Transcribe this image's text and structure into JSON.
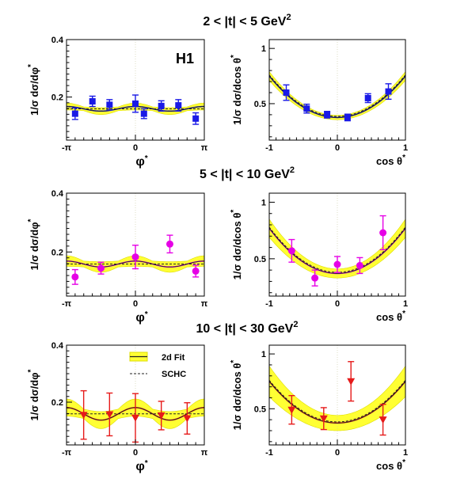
{
  "experiment_label": "H1",
  "legend": {
    "fit_label": "2d Fit",
    "schc_label": "SCHC"
  },
  "colors": {
    "band": "#ffff33",
    "band_edge": "#dddd00",
    "fit": "#222222",
    "schc": "#222222"
  },
  "chart_data": [
    {
      "type": "scatter",
      "row": 0,
      "variable": "phi",
      "row_title": {
        "prefix": "2 < |t| < 5 GeV",
        "sup": "2"
      },
      "ylabel": "1/σ dσ/dφ*",
      "xlabel": "φ*",
      "xlim": [
        -3.1416,
        3.1416
      ],
      "ylim": [
        0.05,
        0.4
      ],
      "xticks": [
        {
          "v": -3.1416,
          "label": "-π"
        },
        {
          "v": 0,
          "label": "0"
        },
        {
          "v": 3.1416,
          "label": "π"
        }
      ],
      "yticks": [
        {
          "v": 0.2,
          "label": "0.2"
        },
        {
          "v": 0.4,
          "label": "0.4"
        }
      ],
      "marker": "square",
      "marker_color": "#1a1ae6",
      "fit_color": "#1a1ae6",
      "fit": {
        "kind": "phi",
        "mean": 0.159,
        "amp": 0.008,
        "band": 0.012
      },
      "schc_level": 0.159,
      "points": [
        {
          "x": -2.75,
          "y": 0.142,
          "err": 0.02
        },
        {
          "x": -1.96,
          "y": 0.185,
          "err": 0.018
        },
        {
          "x": -1.18,
          "y": 0.173,
          "err": 0.018
        },
        {
          "x": 0.0,
          "y": 0.177,
          "err": 0.03
        },
        {
          "x": 0.39,
          "y": 0.142,
          "err": 0.017
        },
        {
          "x": 1.18,
          "y": 0.169,
          "err": 0.018
        },
        {
          "x": 1.96,
          "y": 0.171,
          "err": 0.02
        },
        {
          "x": 2.75,
          "y": 0.125,
          "err": 0.02
        }
      ]
    },
    {
      "type": "scatter",
      "row": 0,
      "variable": "cos",
      "ylabel": "1/σ dσ/dcos θ*",
      "xlabel": "cos θ*",
      "xlim": [
        -1,
        1
      ],
      "ylim": [
        0.17,
        1.08
      ],
      "xticks": [
        {
          "v": -1,
          "label": "-1"
        },
        {
          "v": 0,
          "label": "0"
        },
        {
          "v": 1,
          "label": "1"
        }
      ],
      "yticks": [
        {
          "v": 0.5,
          "label": "0.5"
        },
        {
          "v": 1,
          "label": "1"
        }
      ],
      "marker": "square",
      "marker_color": "#1a1ae6",
      "fit_color": "#1a1ae6",
      "fit": {
        "kind": "cos",
        "a": 0.375,
        "b": 0.375,
        "band": 0.04
      },
      "points": [
        {
          "x": -0.75,
          "y": 0.6,
          "err": 0.07
        },
        {
          "x": -0.45,
          "y": 0.455,
          "err": 0.04
        },
        {
          "x": -0.15,
          "y": 0.4,
          "err": 0.03
        },
        {
          "x": 0.15,
          "y": 0.375,
          "err": 0.03
        },
        {
          "x": 0.45,
          "y": 0.55,
          "err": 0.04
        },
        {
          "x": 0.75,
          "y": 0.61,
          "err": 0.07
        }
      ]
    },
    {
      "type": "scatter",
      "row": 1,
      "variable": "phi",
      "row_title": {
        "prefix": "5 < |t| < 10 GeV",
        "sup": "2"
      },
      "ylabel": "1/σ dσ/dφ*",
      "xlabel": "φ*",
      "xlim": [
        -3.1416,
        3.1416
      ],
      "ylim": [
        0.05,
        0.4
      ],
      "xticks": [
        {
          "v": -3.1416,
          "label": "-π"
        },
        {
          "v": 0,
          "label": "0"
        },
        {
          "v": 3.1416,
          "label": "π"
        }
      ],
      "yticks": [
        {
          "v": 0.2,
          "label": "0.2"
        },
        {
          "v": 0.4,
          "label": "0.4"
        }
      ],
      "marker": "circle",
      "marker_color": "#e600e6",
      "fit_color": "#e600e6",
      "fit": {
        "kind": "phi",
        "mean": 0.159,
        "amp": 0.01,
        "band": 0.018
      },
      "schc_level": 0.159,
      "points": [
        {
          "x": -2.75,
          "y": 0.115,
          "err": 0.025
        },
        {
          "x": -1.57,
          "y": 0.145,
          "err": 0.02
        },
        {
          "x": 0.0,
          "y": 0.183,
          "err": 0.04
        },
        {
          "x": 1.57,
          "y": 0.227,
          "err": 0.03
        },
        {
          "x": 2.75,
          "y": 0.135,
          "err": 0.02
        }
      ]
    },
    {
      "type": "scatter",
      "row": 1,
      "variable": "cos",
      "ylabel": "1/σ dσ/dcos θ*",
      "xlabel": "cos θ*",
      "xlim": [
        -1,
        1
      ],
      "ylim": [
        0.17,
        1.08
      ],
      "xticks": [
        {
          "v": -1,
          "label": "-1"
        },
        {
          "v": 0,
          "label": "0"
        },
        {
          "v": 1,
          "label": "1"
        }
      ],
      "yticks": [
        {
          "v": 0.5,
          "label": "0.5"
        },
        {
          "v": 1,
          "label": "1"
        }
      ],
      "marker": "circle",
      "marker_color": "#e600e6",
      "fit_color": "#e600e6",
      "fit": {
        "kind": "cos",
        "a": 0.37,
        "b": 0.4,
        "band": 0.08
      },
      "points": [
        {
          "x": -0.67,
          "y": 0.57,
          "err": 0.1
        },
        {
          "x": -0.33,
          "y": 0.33,
          "err": 0.07
        },
        {
          "x": 0.0,
          "y": 0.45,
          "err": 0.07
        },
        {
          "x": 0.33,
          "y": 0.44,
          "err": 0.07
        },
        {
          "x": 0.67,
          "y": 0.73,
          "err": 0.15
        }
      ]
    },
    {
      "type": "scatter",
      "row": 2,
      "variable": "phi",
      "row_title": {
        "prefix": "10 < |t| < 30 GeV",
        "sup": "2"
      },
      "ylabel": "1/σ dσ/dφ*",
      "xlabel": "φ*",
      "xlim": [
        -3.1416,
        3.1416
      ],
      "ylim": [
        0.05,
        0.4
      ],
      "xticks": [
        {
          "v": -3.1416,
          "label": "-π"
        },
        {
          "v": 0,
          "label": "0"
        },
        {
          "v": 3.1416,
          "label": "π"
        }
      ],
      "yticks": [
        {
          "v": 0.2,
          "label": "0.2"
        },
        {
          "v": 0.4,
          "label": "0.4"
        }
      ],
      "marker": "triangle",
      "marker_color": "#e61a1a",
      "fit_color": "#e61a1a",
      "fit": {
        "kind": "phi",
        "mean": 0.159,
        "amp": 0.022,
        "band": 0.03
      },
      "schc_level": 0.159,
      "legend": true,
      "points": [
        {
          "x": -2.36,
          "y": 0.155,
          "err": 0.085
        },
        {
          "x": -1.18,
          "y": 0.157,
          "err": 0.075
        },
        {
          "x": 0.0,
          "y": 0.145,
          "err": 0.085
        },
        {
          "x": 1.18,
          "y": 0.153,
          "err": 0.05
        },
        {
          "x": 2.36,
          "y": 0.143,
          "err": 0.055
        }
      ]
    },
    {
      "type": "scatter",
      "row": 2,
      "variable": "cos",
      "ylabel": "1/σ dσ/dcos θ*",
      "xlabel": "cos θ*",
      "xlim": [
        -1,
        1
      ],
      "ylim": [
        0.17,
        1.08
      ],
      "xticks": [
        {
          "v": -1,
          "label": "-1"
        },
        {
          "v": 0,
          "label": "0"
        },
        {
          "v": 1,
          "label": "1"
        }
      ],
      "yticks": [
        {
          "v": 0.5,
          "label": "0.5"
        },
        {
          "v": 1,
          "label": "1"
        }
      ],
      "marker": "triangle",
      "marker_color": "#e61a1a",
      "fit_color": "#e61a1a",
      "fit": {
        "kind": "cos",
        "a": 0.37,
        "b": 0.38,
        "band": 0.14
      },
      "points": [
        {
          "x": -0.67,
          "y": 0.49,
          "err": 0.13
        },
        {
          "x": -0.2,
          "y": 0.41,
          "err": 0.1
        },
        {
          "x": 0.2,
          "y": 0.75,
          "err": 0.18
        },
        {
          "x": 0.67,
          "y": 0.4,
          "err": 0.14
        }
      ]
    }
  ]
}
